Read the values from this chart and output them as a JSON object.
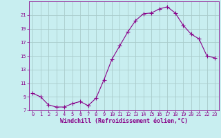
{
  "x": [
    0,
    1,
    2,
    3,
    4,
    5,
    6,
    7,
    8,
    9,
    10,
    11,
    12,
    13,
    14,
    15,
    16,
    17,
    18,
    19,
    20,
    21,
    22,
    23
  ],
  "y": [
    9.5,
    9.0,
    7.8,
    7.5,
    7.5,
    8.0,
    8.3,
    7.7,
    8.8,
    11.5,
    14.5,
    16.5,
    18.5,
    20.2,
    21.2,
    21.3,
    21.9,
    22.2,
    21.3,
    19.5,
    18.2,
    17.5,
    15.0,
    14.7
  ],
  "line_color": "#880088",
  "marker": "+",
  "marker_size": 4,
  "bg_color": "#c8eef0",
  "grid_color": "#aacccc",
  "xlabel": "Windchill (Refroidissement éolien,°C)",
  "xlabel_color": "#880088",
  "tick_color": "#880088",
  "spine_color": "#880088",
  "ylim": [
    7,
    23
  ],
  "xlim": [
    -0.5,
    23.5
  ],
  "yticks": [
    7,
    9,
    11,
    13,
    15,
    17,
    19,
    21
  ],
  "xticks": [
    0,
    1,
    2,
    3,
    4,
    5,
    6,
    7,
    8,
    9,
    10,
    11,
    12,
    13,
    14,
    15,
    16,
    17,
    18,
    19,
    20,
    21,
    22,
    23
  ],
  "tick_labelsize": 5,
  "xlabel_fontsize": 6,
  "linewidth": 0.8
}
